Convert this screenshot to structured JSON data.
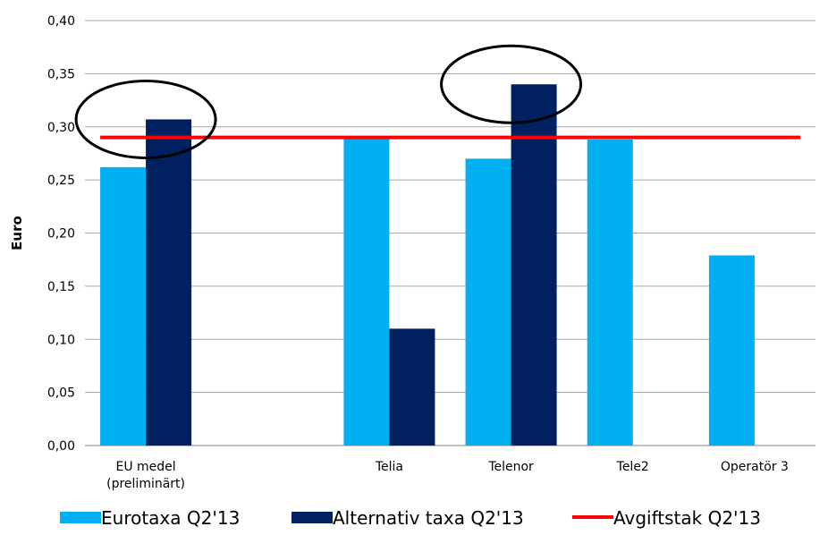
{
  "chart_data": {
    "type": "bar",
    "ylabel": "Euro",
    "ylim": [
      0,
      0.4
    ],
    "yticks": [
      "0,00",
      "0,05",
      "0,10",
      "0,15",
      "0,20",
      "0,25",
      "0,30",
      "0,35",
      "0,40"
    ],
    "categories": [
      {
        "lines": [
          "EU medel",
          "(preliminärt)"
        ]
      },
      {
        "lines": [
          ""
        ]
      },
      {
        "lines": [
          "Telia"
        ]
      },
      {
        "lines": [
          "Telenor"
        ]
      },
      {
        "lines": [
          "Tele2"
        ]
      },
      {
        "lines": [
          "Operatör 3"
        ]
      }
    ],
    "series": [
      {
        "name": "Eurotaxa Q2'13",
        "color": "#00b0f0",
        "values": [
          0.262,
          null,
          0.289,
          0.27,
          0.288,
          0.179
        ]
      },
      {
        "name": "Alternativ taxa Q2'13",
        "color": "#002060",
        "values": [
          0.307,
          null,
          0.11,
          0.34,
          null,
          null
        ]
      }
    ],
    "reference_line": {
      "name": "Avgiftstak Q2'13",
      "color": "#ff0000",
      "value": 0.29
    },
    "highlighted_categories": [
      0,
      3
    ],
    "grid": true,
    "legend_position": "bottom"
  }
}
